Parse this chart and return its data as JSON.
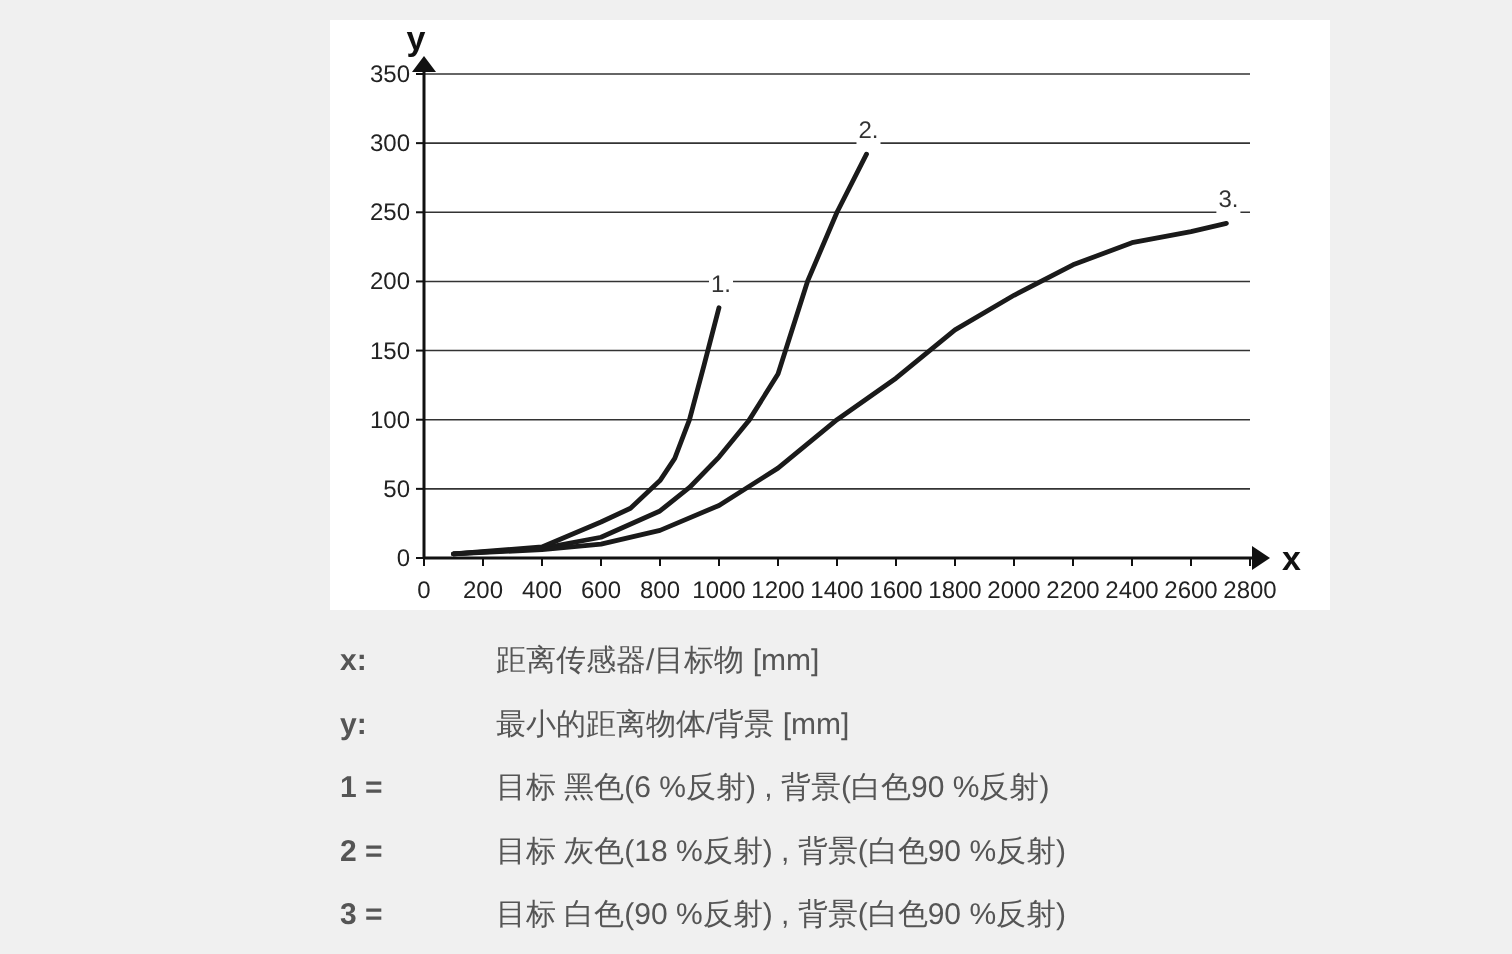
{
  "chart_data": {
    "type": "line",
    "xlabel": "x",
    "ylabel": "y",
    "grid": "y",
    "xlim": [
      0,
      2800
    ],
    "ylim": [
      0,
      350
    ],
    "xticks": [
      0,
      200,
      400,
      600,
      800,
      1000,
      1200,
      1400,
      1600,
      1800,
      2000,
      2200,
      2400,
      2600,
      2800
    ],
    "yticks": [
      0,
      50,
      100,
      150,
      200,
      250,
      300,
      350
    ],
    "series": [
      {
        "name": "1.",
        "color": "#1a1a1a",
        "x": [
          100,
          400,
          600,
          700,
          800,
          850,
          900,
          950,
          1000
        ],
        "values": [
          3,
          8,
          26,
          36,
          56,
          72,
          100,
          140,
          181
        ]
      },
      {
        "name": "2.",
        "color": "#1a1a1a",
        "x": [
          100,
          400,
          600,
          800,
          900,
          1000,
          1100,
          1200,
          1300,
          1400,
          1500
        ],
        "values": [
          3,
          7,
          15,
          34,
          51,
          73,
          99,
          133,
          200,
          250,
          292
        ]
      },
      {
        "name": "3.",
        "color": "#1a1a1a",
        "x": [
          100,
          400,
          600,
          800,
          1000,
          1200,
          1400,
          1600,
          1800,
          2000,
          2200,
          2400,
          2600,
          2720
        ],
        "values": [
          3,
          6,
          10,
          20,
          38,
          65,
          100,
          130,
          165,
          190,
          212,
          228,
          236,
          242
        ]
      }
    ],
    "annotations": [
      "x:",
      "距离传感器/目标物 [mm]",
      "y:",
      "最小的距离物体/背景 [mm]",
      "1 =",
      "目标 黑色(6 %反射) , 背景(白色90 %反射)",
      "2 =",
      "目标 灰色(18 %反射) , 背景(白色90 %反射)",
      "3 =",
      "目标 白色(90 %反射) , 背景(白色90 %反射)"
    ]
  }
}
